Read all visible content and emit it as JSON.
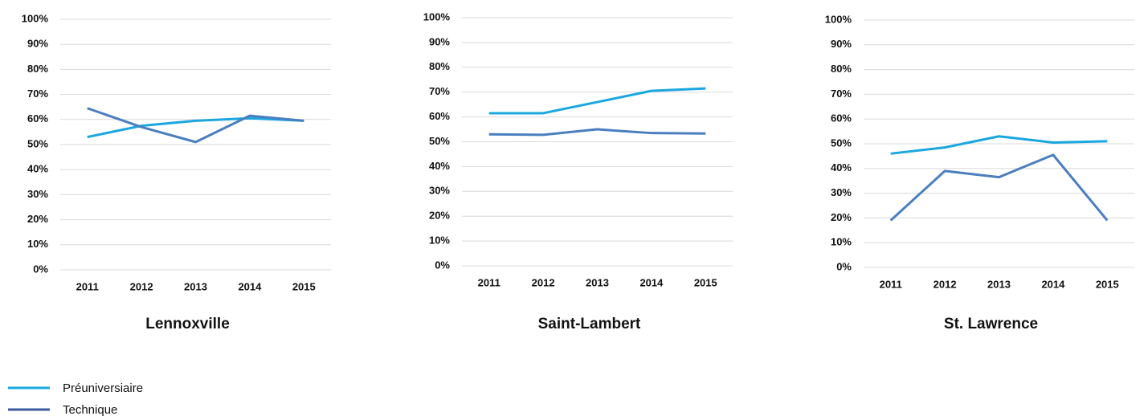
{
  "chart_data": [
    {
      "type": "line",
      "title": "Lennoxville",
      "categories": [
        "2011",
        "2012",
        "2013",
        "2014",
        "2015"
      ],
      "series": [
        {
          "name": "Préuniversiaire",
          "color": "#1aa7e0",
          "values": [
            53,
            57.5,
            59.5,
            60.5,
            59.5
          ]
        },
        {
          "name": "Technique",
          "color": "#4a7fbf",
          "values": [
            64.5,
            57,
            51,
            61.5,
            59.5
          ]
        }
      ],
      "ylim": [
        0,
        100
      ],
      "yticks": [
        {
          "value": 0,
          "label": "0%"
        },
        {
          "value": 10,
          "label": "10%"
        },
        {
          "value": 20,
          "label": "20%"
        },
        {
          "value": 30,
          "label": "30%"
        },
        {
          "value": 40,
          "label": "40%"
        },
        {
          "value": 50,
          "label": "50%"
        },
        {
          "value": 60,
          "label": "60%"
        },
        {
          "value": 70,
          "label": "70%"
        },
        {
          "value": 80,
          "label": "80%"
        },
        {
          "value": 90,
          "label": "90%"
        },
        {
          "value": 100,
          "label": "100%"
        }
      ],
      "grid": true
    },
    {
      "type": "line",
      "title": "Saint-Lambert",
      "categories": [
        "2011",
        "2012",
        "2013",
        "2014",
        "2015"
      ],
      "series": [
        {
          "name": "Préuniversiaire",
          "color": "#1aa7e0",
          "values": [
            61.5,
            61.5,
            66,
            70.5,
            71.5
          ]
        },
        {
          "name": "Technique",
          "color": "#4a7fbf",
          "values": [
            53,
            52.8,
            55,
            53.5,
            53.3
          ]
        }
      ],
      "ylim": [
        0,
        100
      ],
      "yticks": [
        {
          "value": 0,
          "label": "0%"
        },
        {
          "value": 10,
          "label": "10%"
        },
        {
          "value": 20,
          "label": "20%"
        },
        {
          "value": 30,
          "label": "30%"
        },
        {
          "value": 40,
          "label": "40%"
        },
        {
          "value": 50,
          "label": "50%"
        },
        {
          "value": 60,
          "label": "60%"
        },
        {
          "value": 70,
          "label": "70%"
        },
        {
          "value": 80,
          "label": "80%"
        },
        {
          "value": 90,
          "label": "90%"
        },
        {
          "value": 100,
          "label": "100%"
        }
      ],
      "grid": true
    },
    {
      "type": "line",
      "title": "St. Lawrence",
      "categories": [
        "2011",
        "2012",
        "2013",
        "2014",
        "2015"
      ],
      "series": [
        {
          "name": "Préuniversiaire",
          "color": "#1aa7e0",
          "values": [
            46,
            48.5,
            53,
            50.5,
            51
          ]
        },
        {
          "name": "Technique",
          "color": "#4a7fbf",
          "values": [
            19,
            39,
            36.5,
            45.5,
            19
          ]
        }
      ],
      "ylim": [
        0,
        100
      ],
      "yticks": [
        {
          "value": 0,
          "label": "0%"
        },
        {
          "value": 10,
          "label": "10%"
        },
        {
          "value": 20,
          "label": "20%"
        },
        {
          "value": 30,
          "label": "30%"
        },
        {
          "value": 40,
          "label": "40%"
        },
        {
          "value": 50,
          "label": "50%"
        },
        {
          "value": 60,
          "label": "60%"
        },
        {
          "value": 70,
          "label": "70%"
        },
        {
          "value": 80,
          "label": "80%"
        },
        {
          "value": 90,
          "label": "90%"
        },
        {
          "value": 100,
          "label": "100%"
        }
      ],
      "grid": true
    }
  ]
}
